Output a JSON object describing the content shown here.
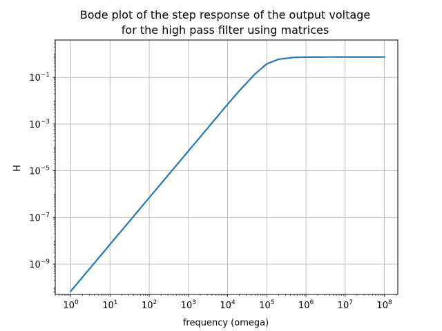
{
  "chart_data": {
    "type": "line",
    "title_lines": [
      "Bode plot of the step response of the output voltage",
      "for the high pass filter using matrices"
    ],
    "xlabel": "frequency (omega)",
    "ylabel": "H",
    "xscale": "log",
    "yscale": "log",
    "xlim": [
      0.4,
      220000000
    ],
    "ylim": [
      5e-11,
      4
    ],
    "x_ticks": [
      {
        "base": "10",
        "exp": "0",
        "value": 1
      },
      {
        "base": "10",
        "exp": "1",
        "value": 10
      },
      {
        "base": "10",
        "exp": "2",
        "value": 100
      },
      {
        "base": "10",
        "exp": "3",
        "value": 1000
      },
      {
        "base": "10",
        "exp": "4",
        "value": 10000
      },
      {
        "base": "10",
        "exp": "5",
        "value": 100000
      },
      {
        "base": "10",
        "exp": "6",
        "value": 1000000
      },
      {
        "base": "10",
        "exp": "7",
        "value": 10000000
      },
      {
        "base": "10",
        "exp": "8",
        "value": 100000000
      }
    ],
    "y_ticks": [
      {
        "base": "10",
        "exp": "−9",
        "value": 1e-09
      },
      {
        "base": "10",
        "exp": "−7",
        "value": 1e-07
      },
      {
        "base": "10",
        "exp": "−5",
        "value": 1e-05
      },
      {
        "base": "10",
        "exp": "−3",
        "value": 0.001
      },
      {
        "base": "10",
        "exp": "−1",
        "value": 0.1
      }
    ],
    "grid": true,
    "series": [
      {
        "color": "#1f77b4",
        "x": [
          1,
          10,
          100,
          1000,
          10000,
          20000,
          50000,
          100000,
          200000,
          500000,
          1000000,
          10000000,
          100000000
        ],
        "y": [
          7e-11,
          7e-09,
          7e-07,
          7e-05,
          0.007,
          0.027,
          0.14,
          0.38,
          0.6,
          0.72,
          0.74,
          0.75,
          0.75
        ]
      }
    ]
  }
}
